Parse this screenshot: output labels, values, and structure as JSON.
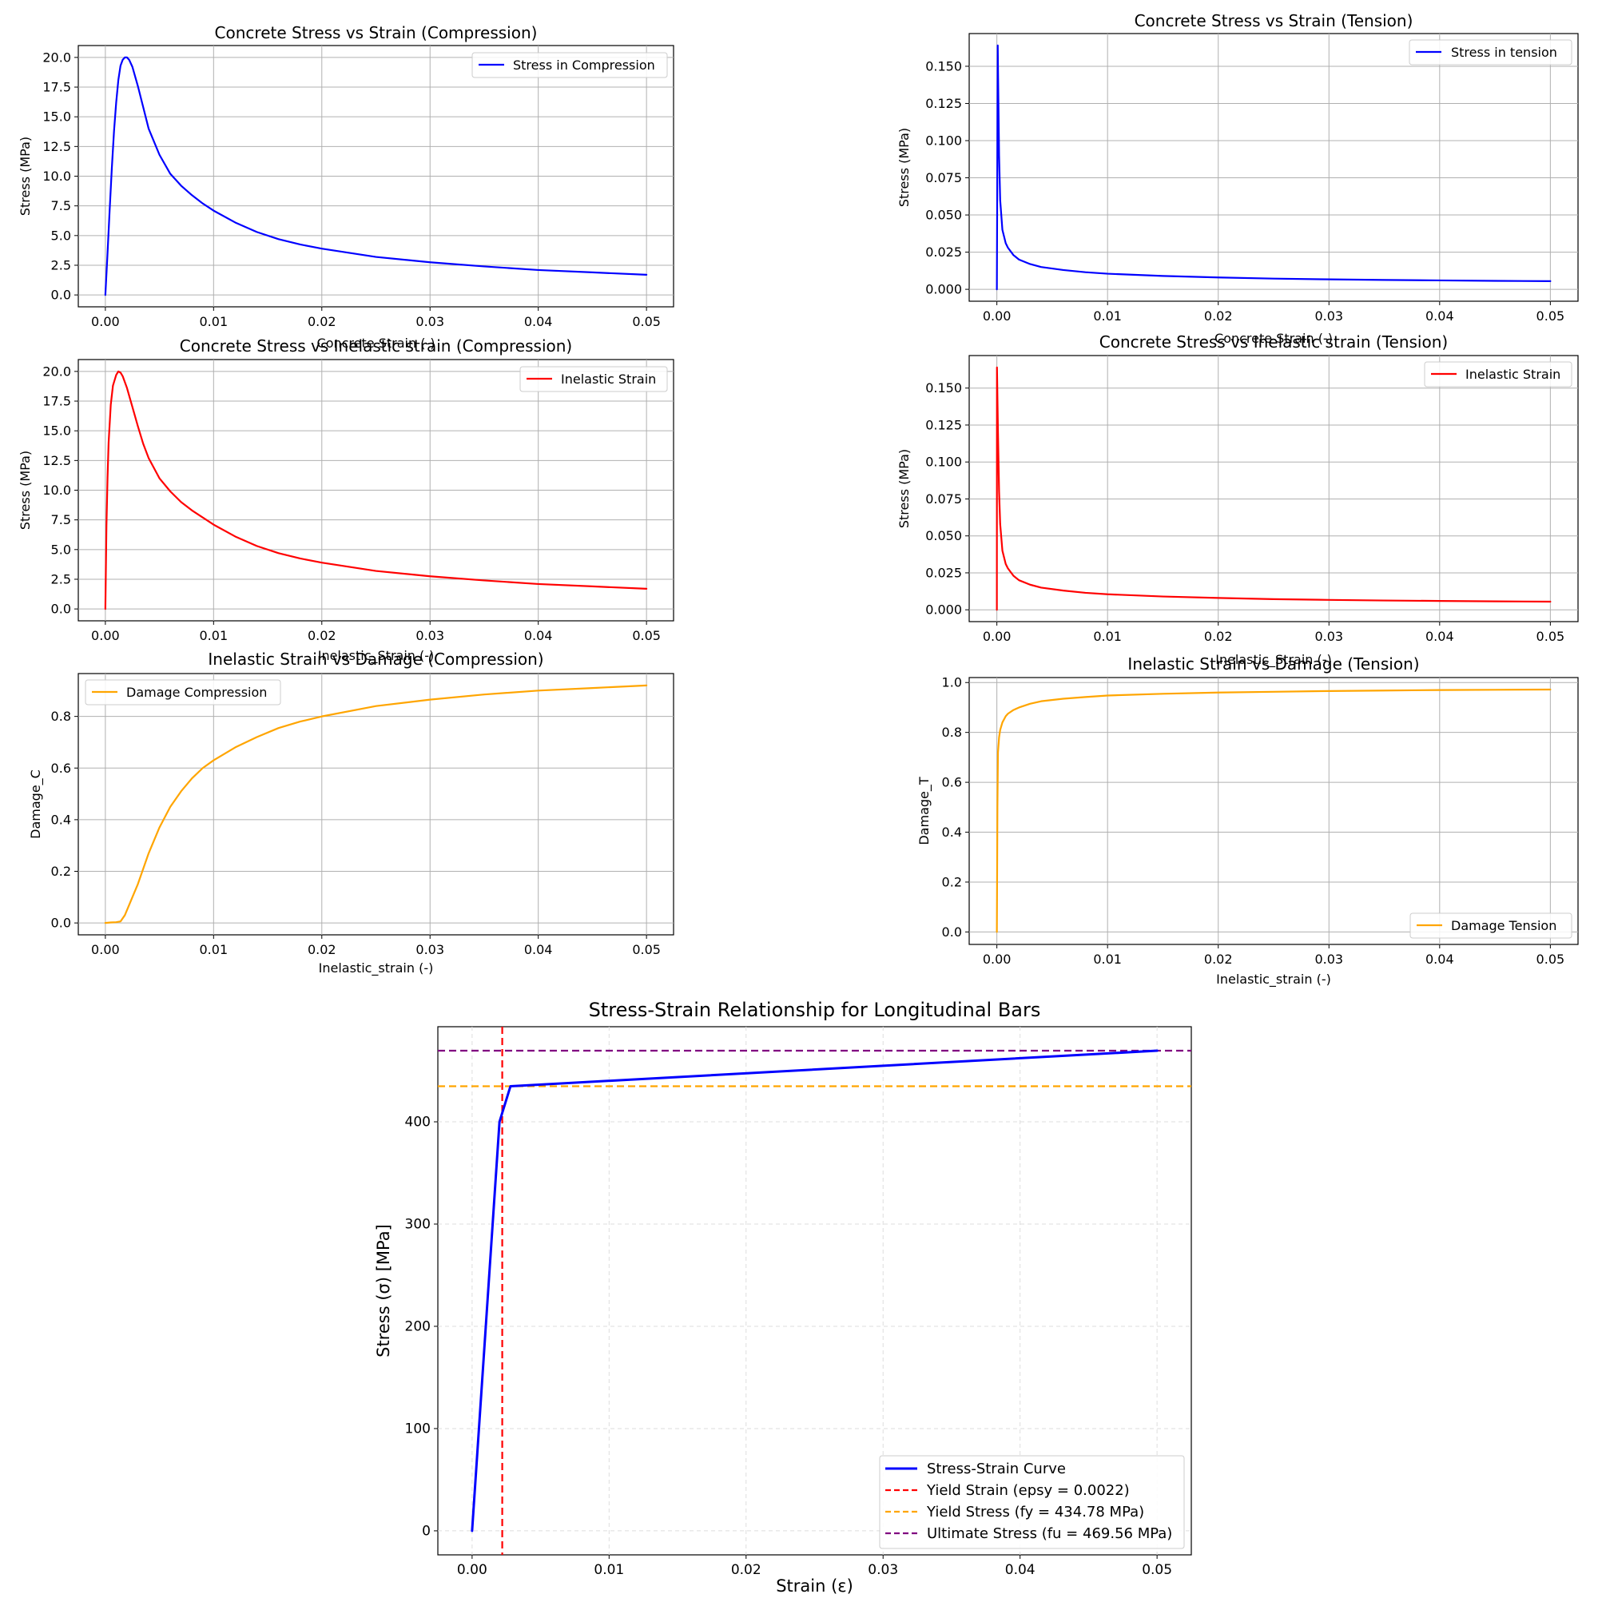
{
  "chart_data": [
    {
      "type": "line",
      "title": "Concrete Stress vs Strain (Compression)",
      "xlabel": "Concrete Strain (-)",
      "ylabel": "Stress (MPa)",
      "xlim": [
        -0.0025,
        0.0525
      ],
      "ylim": [
        -1.0,
        21.0
      ],
      "xticks": [
        "0.00",
        "0.01",
        "0.02",
        "0.03",
        "0.04",
        "0.05"
      ],
      "yticks": [
        "0.0",
        "2.5",
        "5.0",
        "7.5",
        "10.0",
        "12.5",
        "15.0",
        "17.5",
        "20.0"
      ],
      "grid": true,
      "legend_position": "upper right",
      "series": [
        {
          "name": "Stress in Compression",
          "color": "#0000ff",
          "x": [
            0,
            0.0002,
            0.0004,
            0.0006,
            0.0008,
            0.001,
            0.0012,
            0.0014,
            0.0016,
            0.0018,
            0.002,
            0.0022,
            0.0025,
            0.003,
            0.0035,
            0.004,
            0.005,
            0.006,
            0.007,
            0.008,
            0.009,
            0.01,
            0.012,
            0.014,
            0.016,
            0.018,
            0.02,
            0.025,
            0.03,
            0.035,
            0.04,
            0.045,
            0.05
          ],
          "y": [
            0,
            3.5,
            7.2,
            10.7,
            13.8,
            16.2,
            18.1,
            19.3,
            19.8,
            20.0,
            20.0,
            19.8,
            19.2,
            17.6,
            15.8,
            14.0,
            11.8,
            10.2,
            9.2,
            8.4,
            7.7,
            7.1,
            6.1,
            5.3,
            4.7,
            4.25,
            3.9,
            3.2,
            2.75,
            2.4,
            2.1,
            1.9,
            1.7
          ]
        }
      ]
    },
    {
      "type": "line",
      "title": "Concrete Stress vs Strain (Tension)",
      "xlabel": "Concrete Strain (-)",
      "ylabel": "Stress (MPa)",
      "xlim": [
        -0.0025,
        0.0525
      ],
      "ylim": [
        -0.008,
        0.172
      ],
      "xticks": [
        "0.00",
        "0.01",
        "0.02",
        "0.03",
        "0.04",
        "0.05"
      ],
      "yticks": [
        "0.000",
        "0.025",
        "0.050",
        "0.075",
        "0.100",
        "0.125",
        "0.150"
      ],
      "grid": true,
      "legend_position": "upper right",
      "series": [
        {
          "name": "Stress in tension",
          "color": "#0000ff",
          "x": [
            0,
            8e-05,
            0.0001,
            0.0002,
            0.0003,
            0.0005,
            0.0008,
            0.001,
            0.0015,
            0.002,
            0.003,
            0.004,
            0.006,
            0.008,
            0.01,
            0.015,
            0.02,
            0.025,
            0.03,
            0.035,
            0.04,
            0.045,
            0.05
          ],
          "y": [
            0,
            0.164,
            0.15,
            0.09,
            0.06,
            0.04,
            0.031,
            0.028,
            0.023,
            0.02,
            0.017,
            0.015,
            0.013,
            0.0115,
            0.0105,
            0.009,
            0.008,
            0.0072,
            0.0067,
            0.0063,
            0.006,
            0.0057,
            0.0055
          ]
        }
      ]
    },
    {
      "type": "line",
      "title": "Concrete Stress vs Inelastic strain (Compression)",
      "xlabel": "Inelastic_Strain (-)",
      "ylabel": "Stress (MPa)",
      "xlim": [
        -0.0025,
        0.0525
      ],
      "ylim": [
        -1.0,
        21.0
      ],
      "xticks": [
        "0.00",
        "0.01",
        "0.02",
        "0.03",
        "0.04",
        "0.05"
      ],
      "yticks": [
        "0.0",
        "2.5",
        "5.0",
        "7.5",
        "10.0",
        "12.5",
        "15.0",
        "17.5",
        "20.0"
      ],
      "grid": true,
      "legend_position": "upper right",
      "series": [
        {
          "name": "Inelastic Strain",
          "color": "#ff0000",
          "x": [
            0,
            0.0001,
            0.0002,
            0.0003,
            0.0005,
            0.0007,
            0.001,
            0.0012,
            0.0014,
            0.0016,
            0.002,
            0.0025,
            0.003,
            0.0035,
            0.004,
            0.005,
            0.006,
            0.007,
            0.008,
            0.009,
            0.01,
            0.012,
            0.014,
            0.016,
            0.018,
            0.02,
            0.025,
            0.03,
            0.035,
            0.04,
            0.045,
            0.05
          ],
          "y": [
            0,
            7.0,
            11.0,
            14.0,
            17.2,
            18.8,
            19.7,
            20.0,
            19.9,
            19.6,
            18.6,
            17.0,
            15.4,
            13.9,
            12.7,
            11.0,
            9.9,
            9.0,
            8.3,
            7.7,
            7.1,
            6.1,
            5.3,
            4.7,
            4.25,
            3.9,
            3.2,
            2.75,
            2.4,
            2.1,
            1.9,
            1.7
          ]
        }
      ]
    },
    {
      "type": "line",
      "title": "Concrete Stress vs Inelastic strain (Tension)",
      "xlabel": "Inelastic_Strain (-)",
      "ylabel": "Stress (MPa)",
      "xlim": [
        -0.0025,
        0.0525
      ],
      "ylim": [
        -0.008,
        0.172
      ],
      "xticks": [
        "0.00",
        "0.01",
        "0.02",
        "0.03",
        "0.04",
        "0.05"
      ],
      "yticks": [
        "0.000",
        "0.025",
        "0.050",
        "0.075",
        "0.100",
        "0.125",
        "0.150"
      ],
      "grid": true,
      "legend_position": "upper right",
      "series": [
        {
          "name": "Inelastic Strain",
          "color": "#ff0000",
          "x": [
            0,
            1e-05,
            0.0001,
            0.0002,
            0.0003,
            0.0005,
            0.0008,
            0.001,
            0.0015,
            0.002,
            0.003,
            0.004,
            0.006,
            0.008,
            0.01,
            0.015,
            0.02,
            0.025,
            0.03,
            0.035,
            0.04,
            0.045,
            0.05
          ],
          "y": [
            0,
            0.164,
            0.12,
            0.08,
            0.058,
            0.04,
            0.031,
            0.028,
            0.023,
            0.02,
            0.017,
            0.015,
            0.013,
            0.0115,
            0.0105,
            0.009,
            0.008,
            0.0072,
            0.0067,
            0.0063,
            0.006,
            0.0057,
            0.0055
          ]
        }
      ]
    },
    {
      "type": "line",
      "title": "Inelastic Strain vs Damage (Compression)",
      "xlabel": "Inelastic_strain (-)",
      "ylabel": "Damage_C",
      "xlim": [
        -0.0025,
        0.0525
      ],
      "ylim": [
        -0.046,
        0.966
      ],
      "xticks": [
        "0.00",
        "0.01",
        "0.02",
        "0.03",
        "0.04",
        "0.05"
      ],
      "yticks": [
        "0.0",
        "0.2",
        "0.4",
        "0.6",
        "0.8"
      ],
      "grid": true,
      "legend_position": "upper left",
      "series": [
        {
          "name": "Damage Compression",
          "color": "#ffa500",
          "x": [
            0,
            0.0005,
            0.001,
            0.0014,
            0.0018,
            0.0022,
            0.0026,
            0.003,
            0.0035,
            0.004,
            0.005,
            0.006,
            0.007,
            0.008,
            0.009,
            0.01,
            0.012,
            0.014,
            0.016,
            0.018,
            0.02,
            0.025,
            0.03,
            0.035,
            0.04,
            0.045,
            0.05
          ],
          "y": [
            0,
            0.002,
            0.003,
            0.006,
            0.03,
            0.07,
            0.11,
            0.15,
            0.21,
            0.27,
            0.37,
            0.45,
            0.51,
            0.56,
            0.6,
            0.63,
            0.68,
            0.72,
            0.755,
            0.78,
            0.8,
            0.84,
            0.865,
            0.885,
            0.9,
            0.91,
            0.92
          ]
        }
      ]
    },
    {
      "type": "line",
      "title": "Inelastic Strain vs Damage (Tension)",
      "xlabel": "Inelastic_strain (-)",
      "ylabel": "Damage_T",
      "xlim": [
        -0.0025,
        0.0525
      ],
      "ylim": [
        -0.05,
        1.02
      ],
      "xticks": [
        "0.00",
        "0.01",
        "0.02",
        "0.03",
        "0.04",
        "0.05"
      ],
      "yticks": [
        "0.0",
        "0.2",
        "0.4",
        "0.6",
        "0.8",
        "1.0"
      ],
      "grid": true,
      "legend_position": "lower right",
      "series": [
        {
          "name": "Damage Tension",
          "color": "#ffa500",
          "x": [
            0,
            5e-05,
            0.0001,
            0.0002,
            0.0003,
            0.0005,
            0.0008,
            0.001,
            0.0015,
            0.002,
            0.003,
            0.004,
            0.006,
            0.008,
            0.01,
            0.015,
            0.02,
            0.025,
            0.03,
            0.035,
            0.04,
            0.045,
            0.05
          ],
          "y": [
            0,
            0.5,
            0.72,
            0.78,
            0.81,
            0.84,
            0.865,
            0.875,
            0.89,
            0.9,
            0.915,
            0.925,
            0.935,
            0.942,
            0.948,
            0.955,
            0.96,
            0.963,
            0.966,
            0.968,
            0.97,
            0.971,
            0.972
          ]
        }
      ]
    },
    {
      "type": "line",
      "title": "Stress-Strain Relationship for Longitudinal Bars",
      "xlabel": "Strain (ε)",
      "ylabel": "Stress (σ) [MPa]",
      "xlim": [
        -0.0025,
        0.0525
      ],
      "ylim": [
        -23.5,
        493.0
      ],
      "xticks": [
        "0.00",
        "0.01",
        "0.02",
        "0.03",
        "0.04",
        "0.05"
      ],
      "yticks": [
        "0",
        "100",
        "200",
        "300",
        "400"
      ],
      "grid": true,
      "grid_style": "dashed",
      "legend_position": "lower right",
      "series": [
        {
          "name": "Stress-Strain Curve",
          "color": "#0000ff",
          "x": [
            0,
            0.002,
            0.0028,
            0.05
          ],
          "y": [
            0,
            400,
            434.78,
            469.56
          ]
        }
      ],
      "reference_lines": [
        {
          "name": "Yield Strain (epsy = 0.0022)",
          "orientation": "vertical",
          "value": 0.0022,
          "color": "#ff0000",
          "style": "dashed"
        },
        {
          "name": "Yield Stress (fy = 434.78 MPa)",
          "orientation": "horizontal",
          "value": 434.78,
          "color": "#ffa500",
          "style": "dashed"
        },
        {
          "name": "Ultimate Stress (fu = 469.56 MPa)",
          "orientation": "horizontal",
          "value": 469.56,
          "color": "#800080",
          "style": "dashed"
        }
      ]
    }
  ]
}
